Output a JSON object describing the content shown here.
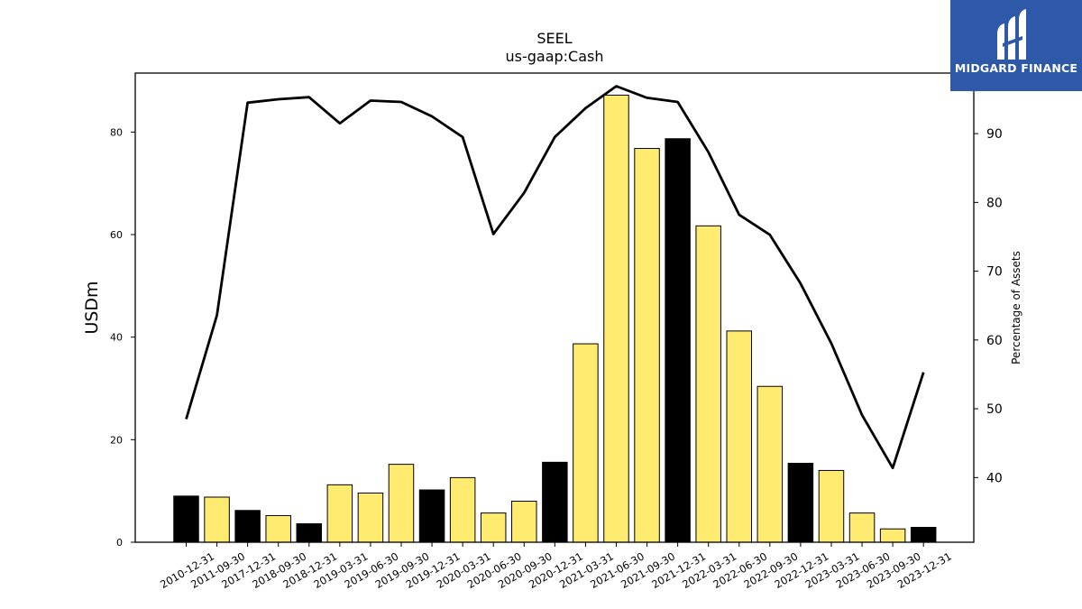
{
  "chart_data": {
    "type": "bar+line",
    "title": "SEEL",
    "subtitle": "us-gaap:Cash",
    "ylabel": "USDm",
    "y2label": "Percentage of Assets",
    "ylim": [
      0,
      91.5
    ],
    "y2lim": [
      30.6,
      98.8
    ],
    "yticks": [
      0,
      20,
      40,
      60,
      80
    ],
    "y2ticks": [
      40,
      50,
      60,
      70,
      80,
      90
    ],
    "categories": [
      "2010-12-31",
      "2011-09-30",
      "2017-12-31",
      "2018-09-30",
      "2018-12-31",
      "2019-03-31",
      "2019-06-30",
      "2019-09-30",
      "2019-12-31",
      "2020-03-31",
      "2020-06-30",
      "2020-09-30",
      "2020-12-31",
      "2021-03-31",
      "2021-06-30",
      "2021-09-30",
      "2021-12-31",
      "2022-03-31",
      "2022-06-30",
      "2022-09-30",
      "2022-12-31",
      "2023-03-31",
      "2023-06-30",
      "2023-09-30",
      "2023-12-31"
    ],
    "series": [
      {
        "kind": "bar",
        "values": [
          9.0,
          8.8,
          6.2,
          5.2,
          3.6,
          11.2,
          9.6,
          15.2,
          10.2,
          12.6,
          5.7,
          8.0,
          15.6,
          38.7,
          87.2,
          76.8,
          78.7,
          61.7,
          41.2,
          30.4,
          15.4,
          14.0,
          5.7,
          2.6,
          2.9
        ],
        "colors": [
          "#000000",
          "#ffeb70",
          "#000000",
          "#ffeb70",
          "#000000",
          "#ffeb70",
          "#ffeb70",
          "#ffeb70",
          "#000000",
          "#ffeb70",
          "#ffeb70",
          "#ffeb70",
          "#000000",
          "#ffeb70",
          "#ffeb70",
          "#ffeb70",
          "#000000",
          "#ffeb70",
          "#ffeb70",
          "#ffeb70",
          "#000000",
          "#ffeb70",
          "#ffeb70",
          "#ffeb70",
          "#000000"
        ]
      },
      {
        "kind": "line",
        "axis": "right",
        "values": [
          48.5,
          63.6,
          94.5,
          95.0,
          95.3,
          91.5,
          94.8,
          94.6,
          92.5,
          89.5,
          75.4,
          81.4,
          89.5,
          93.7,
          96.9,
          95.2,
          94.6,
          87.3,
          78.2,
          75.3,
          68.2,
          59.5,
          49.1,
          41.4,
          55.3
        ],
        "color": "#000000"
      }
    ]
  },
  "logo": {
    "text": "MIDGARD FINANCE",
    "color": "#2e59a8"
  }
}
